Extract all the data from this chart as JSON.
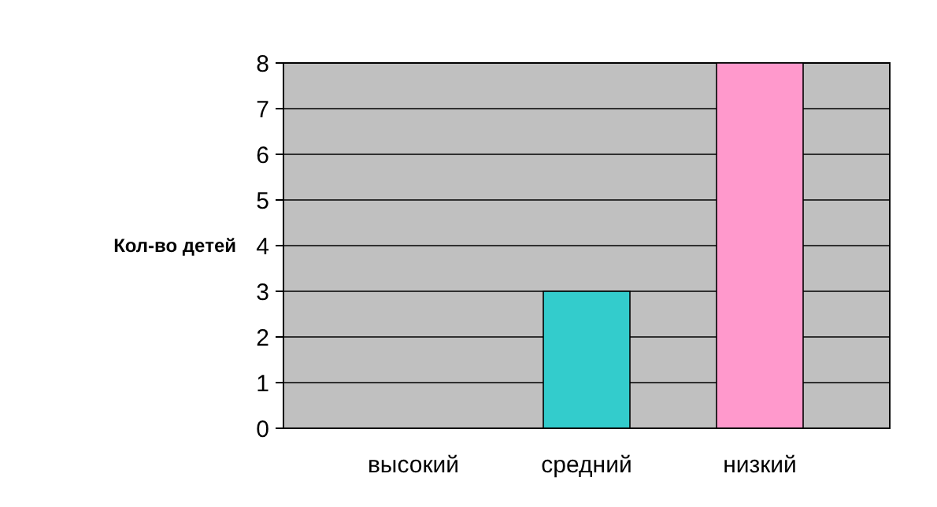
{
  "chart_data": {
    "type": "bar",
    "ylabel": "Кол-во детей",
    "categories": [
      "высокий",
      "средний",
      "низкий"
    ],
    "values": [
      0,
      3,
      8
    ],
    "colors": [
      "#8080ff",
      "#33cccc",
      "#ff99cc"
    ],
    "ylim": [
      0,
      8
    ],
    "yticks": [
      0,
      1,
      2,
      3,
      4,
      5,
      6,
      7,
      8
    ],
    "grid": "y"
  }
}
